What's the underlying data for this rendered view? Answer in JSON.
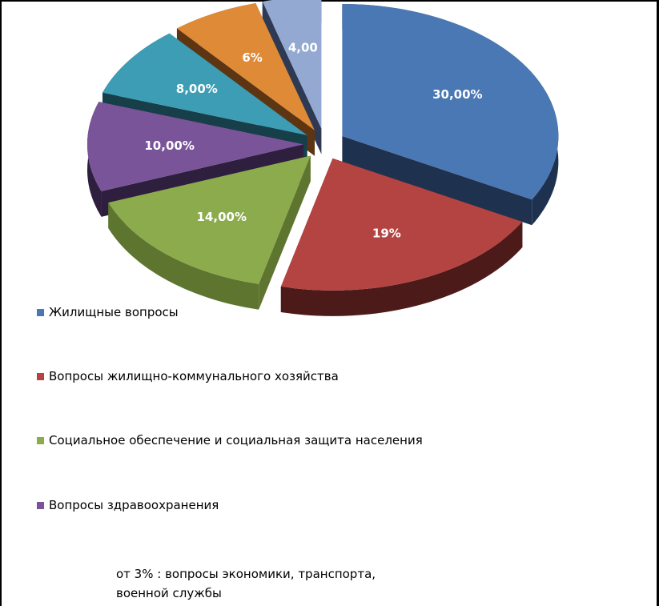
{
  "chart_data": {
    "type": "pie",
    "style": "3d-exploded",
    "slices": [
      {
        "name": "Жилищные вопросы",
        "value": 30,
        "label": "30,00%",
        "color": "#4a78b4",
        "dark": "#1e3250"
      },
      {
        "name": "Вопросы жилищно-коммунального хозяйства",
        "value": 19,
        "label": "19%",
        "color": "#b44442",
        "dark": "#4c1a19"
      },
      {
        "name": "Социальное обеспечение и социальная защита населения",
        "value": 14,
        "label": "14,00%",
        "color": "#8cab4c",
        "dark": "#5e7530"
      },
      {
        "name": "Вопросы здравоохранения",
        "value": 10,
        "label": "10,00%",
        "color": "#7a5499",
        "dark": "#2e1f3f"
      },
      {
        "name": "",
        "value": 8,
        "label": "8,00%",
        "color": "#3d9db4",
        "dark": "#163f4a"
      },
      {
        "name": "",
        "value": 6,
        "label": "6%",
        "color": "#df8a36",
        "dark": "#5e3512"
      },
      {
        "name": "",
        "value": 4,
        "label": "4,00",
        "color": "#93a9d2",
        "dark": "#2e3a54"
      }
    ],
    "legend_position": "bottom",
    "footnote": "от 3% : вопросы экономики, транспорта, военной службы"
  },
  "legend": {
    "items": [
      {
        "label": "Жилищные вопросы",
        "color": "#4a78b4"
      },
      {
        "label": "Вопросы жилищно-коммунального хозяйства",
        "color": "#b44442"
      },
      {
        "label": "Социальное обеспечение и социальная защита населения",
        "color": "#8cab4c"
      },
      {
        "label": "Вопросы здравоохранения",
        "color": "#7a5499"
      }
    ]
  },
  "footnote": {
    "line1": "от 3% : вопросы экономики, транспорта,",
    "line2": "военной службы"
  }
}
